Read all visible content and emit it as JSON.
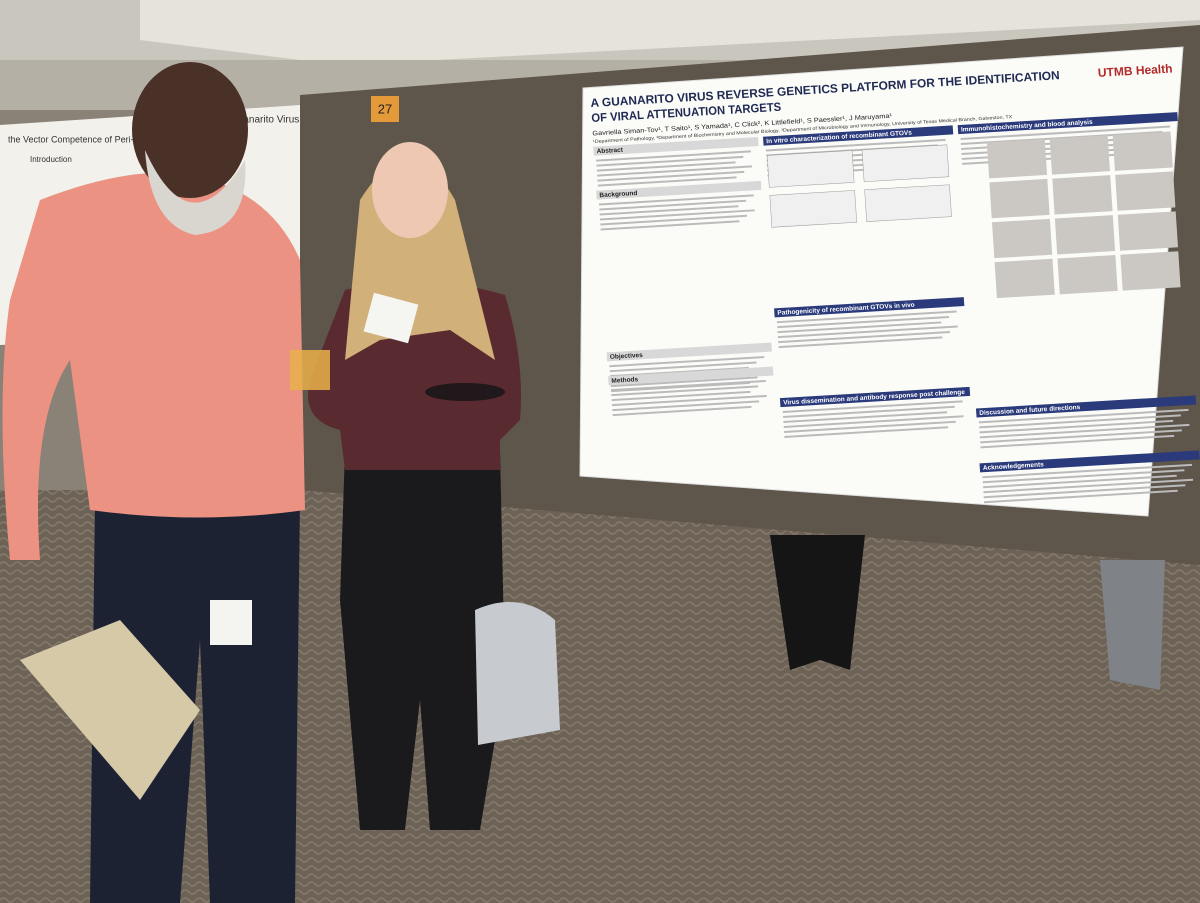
{
  "booth_number": "27",
  "poster": {
    "title_lines": [
      "A GUANARITO VIRUS REVERSE GENETICS PLATFORM FOR THE IDENTIFICATION",
      "OF VIRAL ATTENUATION TARGETS"
    ],
    "authors": "Gavriella Siman-Tov¹, T Saito¹, S Yamada¹, C Click², K Littlefield¹, S Paessler¹, J Maruyama¹",
    "affiliations": "¹Department of Pathology, ²Department of Biochemistry and Molecular Biology, ³Department of Microbiology and Immunology, University of Texas Medical Branch, Galveston, TX",
    "logo": "UTMB Health",
    "left_column": [
      "Abstract",
      "Background",
      "Objectives",
      "Methods"
    ],
    "middle_column": [
      "In vitro characterization of recombinant GTOVs",
      "Pathogenicity of recombinant GTOVs in vivo",
      "Virus dissemination and antibody response post challenge"
    ],
    "right_column": [
      "Immunohistochemistry and blood analysis",
      "Discussion and future directions",
      "Acknowledgements"
    ]
  },
  "neighbor_poster": {
    "title": "the Vector Competence of Peri-domestic",
    "subtitle": "Guanarito Virus",
    "section": "Introduction"
  }
}
